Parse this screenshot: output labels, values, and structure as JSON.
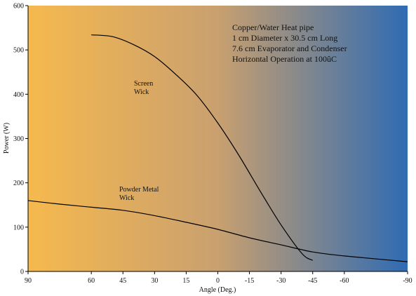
{
  "chart_data": {
    "type": "line",
    "xlabel": "Angle (Deg.)",
    "ylabel": "Power (W)",
    "xlim": [
      90,
      -90
    ],
    "ylim": [
      0,
      600
    ],
    "x_ticks": [
      "90",
      "60",
      "45",
      "30",
      "15",
      "0",
      "-15",
      "-30",
      "-45",
      "-60",
      "-90"
    ],
    "y_ticks": [
      "0",
      "100",
      "200",
      "300",
      "400",
      "500",
      "600"
    ],
    "grid": false,
    "background": {
      "gradient_from": "#f6b94e",
      "gradient_to": "#2f6bb3"
    },
    "info_lines": [
      "Copper/Water Heat pipe",
      "1 cm Diameter x 30.5 cm Long",
      "7.6 cm Evaporator and Condenser",
      "Horizontal Operation at 100ûC"
    ],
    "series": [
      {
        "name": "Screen Wick",
        "label_lines": [
          "Screen",
          "Wick"
        ],
        "color": "#000000",
        "points": [
          [
            60,
            534
          ],
          [
            50,
            530
          ],
          [
            40,
            512
          ],
          [
            30,
            485
          ],
          [
            20,
            445
          ],
          [
            10,
            398
          ],
          [
            0,
            335
          ],
          [
            -10,
            262
          ],
          [
            -20,
            182
          ],
          [
            -30,
            105
          ],
          [
            -40,
            40
          ],
          [
            -45,
            25
          ]
        ]
      },
      {
        "name": "Powder Metal Wick",
        "label_lines": [
          "Powder Metal",
          "Wick"
        ],
        "color": "#000000",
        "points": [
          [
            90,
            160
          ],
          [
            75,
            152
          ],
          [
            60,
            145
          ],
          [
            45,
            138
          ],
          [
            30,
            126
          ],
          [
            15,
            111
          ],
          [
            0,
            95
          ],
          [
            -15,
            76
          ],
          [
            -30,
            60
          ],
          [
            -45,
            44
          ],
          [
            -60,
            35
          ],
          [
            -90,
            22
          ]
        ]
      }
    ]
  }
}
